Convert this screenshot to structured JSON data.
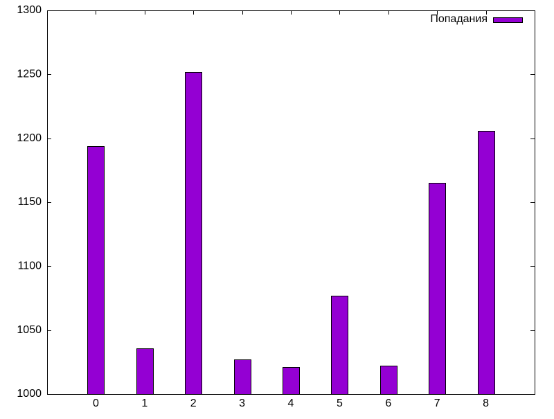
{
  "chart_data": {
    "type": "bar",
    "categories": [
      "0",
      "1",
      "2",
      "3",
      "4",
      "5",
      "6",
      "7",
      "8"
    ],
    "series": [
      {
        "name": "Попадания",
        "values": [
          1194,
          1036,
          1252,
          1027,
          1021,
          1077,
          1022,
          1165,
          1206
        ],
        "color": "#9400d3"
      }
    ],
    "ylim": [
      1000,
      1300
    ],
    "yticks": [
      1000,
      1050,
      1100,
      1150,
      1200,
      1250,
      1300
    ],
    "xlim": [
      -1,
      9
    ],
    "legend_position": "top-right",
    "grid": false
  }
}
